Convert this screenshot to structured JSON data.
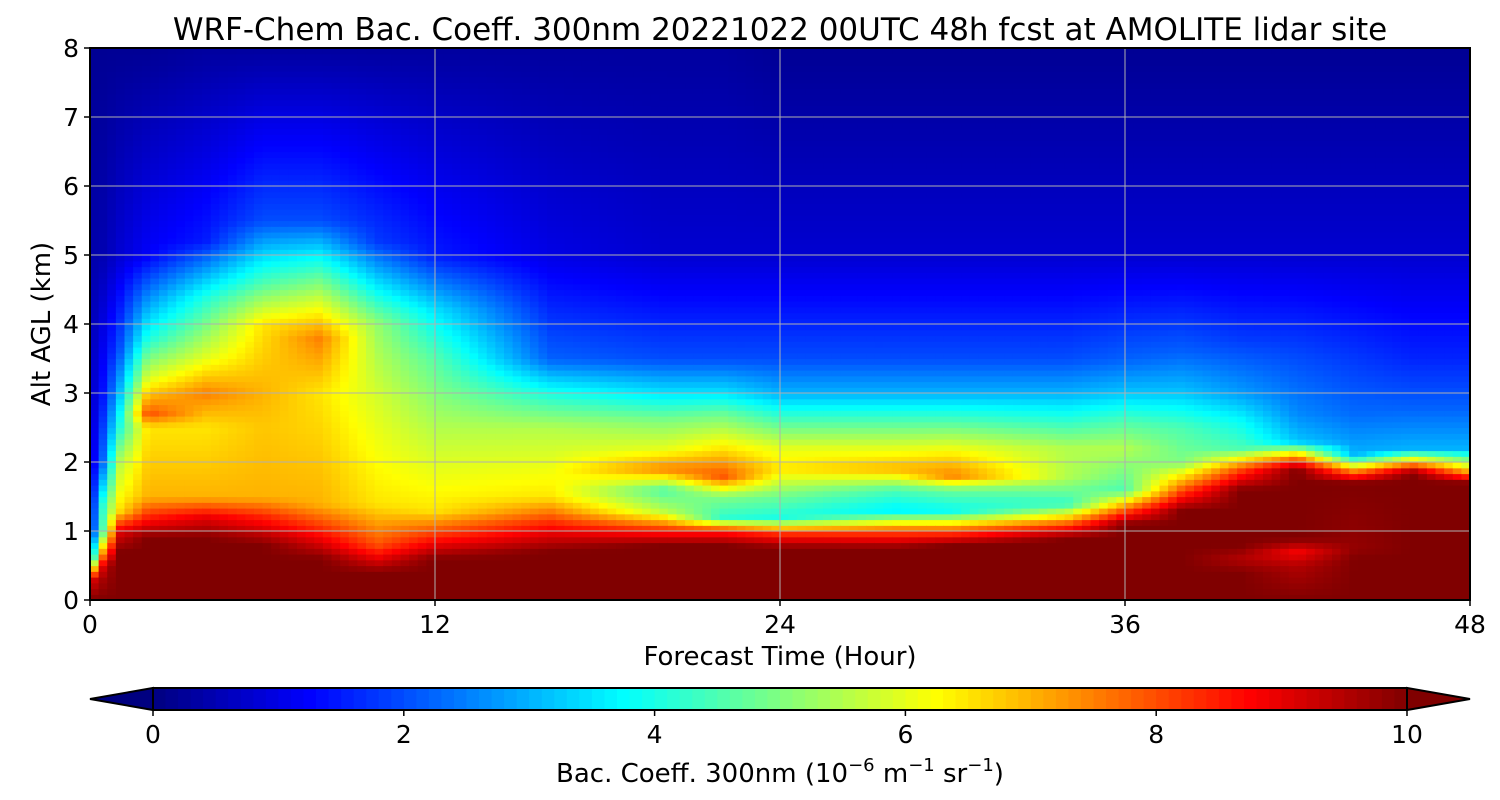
{
  "chart_data": {
    "type": "heatmap",
    "title": "WRF-Chem Bac. Coeff. 300nm  20221022 00UTC 48h fcst at AMOLITE lidar site",
    "xlabel": "Forecast Time (Hour)",
    "ylabel": "Alt AGL (km)",
    "xlim": [
      0,
      48
    ],
    "ylim": [
      0,
      8
    ],
    "x_ticks": [
      0,
      12,
      24,
      36,
      48
    ],
    "y_ticks": [
      0,
      1,
      2,
      3,
      4,
      5,
      6,
      7,
      8
    ],
    "grid": true,
    "colormap": "jet",
    "colorbar": {
      "orientation": "horizontal",
      "location": "bottom",
      "range": [
        0,
        10
      ],
      "ticks": [
        0,
        2,
        4,
        6,
        8,
        10
      ],
      "extend": "both",
      "label_main": "Bac. Coeff. 300nm  (10",
      "label_exp1": "−6",
      "label_mid": " m",
      "label_exp2": "−1",
      "label_mid2": " sr",
      "label_exp3": "−1",
      "label_end": ")"
    },
    "x_hours": [
      0,
      0.5,
      1,
      2,
      4,
      6,
      8,
      10,
      12,
      16,
      20,
      22,
      24,
      28,
      30,
      34,
      36,
      38,
      40,
      42,
      44,
      46,
      48
    ],
    "profiles": [
      {
        "hour": 0,
        "points": [
          [
            0,
            10
          ],
          [
            0.3,
            9
          ],
          [
            0.6,
            3
          ],
          [
            1,
            1.2
          ],
          [
            2,
            0.7
          ],
          [
            4,
            0.5
          ],
          [
            8,
            0.2
          ]
        ]
      },
      {
        "hour": 0.5,
        "points": [
          [
            0,
            10
          ],
          [
            0.5,
            9.5
          ],
          [
            1,
            5
          ],
          [
            1.4,
            4.5
          ],
          [
            2,
            2.5
          ],
          [
            3,
            1.5
          ],
          [
            5,
            0.5
          ],
          [
            8,
            0.2
          ]
        ]
      },
      {
        "hour": 1,
        "points": [
          [
            0,
            10
          ],
          [
            0.7,
            10
          ],
          [
            1,
            9
          ],
          [
            1.3,
            6.5
          ],
          [
            2,
            5.5
          ],
          [
            2.5,
            4
          ],
          [
            3,
            3
          ],
          [
            3.6,
            2
          ],
          [
            5,
            0.8
          ],
          [
            8,
            0.2
          ]
        ]
      },
      {
        "hour": 2,
        "points": [
          [
            0,
            10
          ],
          [
            0.9,
            10
          ],
          [
            1.1,
            9
          ],
          [
            1.5,
            7
          ],
          [
            2.5,
            6.5
          ],
          [
            2.7,
            8
          ],
          [
            3.2,
            6
          ],
          [
            3.8,
            4
          ],
          [
            5,
            1.2
          ],
          [
            8,
            0.2
          ]
        ]
      },
      {
        "hour": 4,
        "points": [
          [
            0,
            10
          ],
          [
            0.9,
            10
          ],
          [
            1.2,
            9
          ],
          [
            1.5,
            7
          ],
          [
            2.5,
            6.5
          ],
          [
            3,
            7.5
          ],
          [
            3.5,
            6
          ],
          [
            4.4,
            4
          ],
          [
            5.2,
            1.5
          ],
          [
            8,
            0.3
          ]
        ]
      },
      {
        "hour": 6,
        "points": [
          [
            0,
            10
          ],
          [
            0.8,
            10
          ],
          [
            1.2,
            8.5
          ],
          [
            1.5,
            7
          ],
          [
            2.5,
            6.8
          ],
          [
            3,
            7
          ],
          [
            4,
            6.5
          ],
          [
            4.6,
            4.5
          ],
          [
            5.5,
            2
          ],
          [
            8,
            0.3
          ]
        ]
      },
      {
        "hour": 8,
        "points": [
          [
            0,
            10
          ],
          [
            0.6,
            10
          ],
          [
            1,
            8.5
          ],
          [
            1.4,
            7
          ],
          [
            3,
            6.5
          ],
          [
            3.8,
            7.5
          ],
          [
            4.6,
            5
          ],
          [
            5.5,
            2
          ],
          [
            8,
            0.3
          ]
        ]
      },
      {
        "hour": 10,
        "points": [
          [
            0,
            10
          ],
          [
            0.4,
            10
          ],
          [
            0.8,
            8
          ],
          [
            1.4,
            6.5
          ],
          [
            3,
            5.8
          ],
          [
            4,
            5.2
          ],
          [
            4.4,
            4
          ],
          [
            5.2,
            1.8
          ],
          [
            8,
            0.3
          ]
        ]
      },
      {
        "hour": 12,
        "points": [
          [
            0,
            10
          ],
          [
            0.6,
            10
          ],
          [
            0.9,
            8.5
          ],
          [
            1.3,
            6.5
          ],
          [
            2.5,
            5.5
          ],
          [
            3.5,
            4.6
          ],
          [
            4.2,
            3.5
          ],
          [
            5,
            1.5
          ],
          [
            8,
            0.3
          ]
        ]
      },
      {
        "hour": 16,
        "points": [
          [
            0,
            10
          ],
          [
            0.7,
            10
          ],
          [
            1.1,
            8.5
          ],
          [
            1.5,
            6.5
          ],
          [
            2.5,
            5.5
          ],
          [
            3,
            4
          ],
          [
            3.5,
            2.2
          ],
          [
            5,
            1
          ],
          [
            8,
            0.3
          ]
        ]
      },
      {
        "hour": 20,
        "points": [
          [
            0,
            10
          ],
          [
            0.8,
            10
          ],
          [
            1,
            8.5
          ],
          [
            1.3,
            5.5
          ],
          [
            1.6,
            4.5
          ],
          [
            1.9,
            7.5
          ],
          [
            2.2,
            6
          ],
          [
            2.6,
            5
          ],
          [
            3,
            3.5
          ],
          [
            3.5,
            2
          ],
          [
            5,
            0.8
          ],
          [
            8,
            0.3
          ]
        ]
      },
      {
        "hour": 22,
        "points": [
          [
            0,
            10
          ],
          [
            0.8,
            10
          ],
          [
            1,
            8.5
          ],
          [
            1.2,
            4.2
          ],
          [
            1.5,
            5
          ],
          [
            1.8,
            8
          ],
          [
            2.2,
            6.5
          ],
          [
            2.7,
            4.8
          ],
          [
            3,
            3.5
          ],
          [
            3.5,
            2
          ],
          [
            5,
            0.8
          ],
          [
            8,
            0.3
          ]
        ]
      },
      {
        "hour": 24,
        "points": [
          [
            0,
            10
          ],
          [
            0.75,
            10
          ],
          [
            0.95,
            8.5
          ],
          [
            1.2,
            4
          ],
          [
            1.5,
            4.8
          ],
          [
            1.9,
            6.5
          ],
          [
            2.2,
            6
          ],
          [
            2.6,
            4.5
          ],
          [
            3,
            3
          ],
          [
            3.5,
            2
          ],
          [
            5,
            0.8
          ],
          [
            8,
            0.2
          ]
        ]
      },
      {
        "hour": 28,
        "points": [
          [
            0,
            10
          ],
          [
            0.75,
            10
          ],
          [
            1,
            8
          ],
          [
            1.3,
            3.6
          ],
          [
            1.6,
            4.5
          ],
          [
            1.9,
            7
          ],
          [
            2.2,
            6
          ],
          [
            2.6,
            4.5
          ],
          [
            3,
            3
          ],
          [
            3.5,
            2
          ],
          [
            5,
            0.8
          ],
          [
            8,
            0.2
          ]
        ]
      },
      {
        "hour": 30,
        "points": [
          [
            0,
            10
          ],
          [
            0.8,
            10
          ],
          [
            1,
            8
          ],
          [
            1.3,
            3.8
          ],
          [
            1.6,
            4.8
          ],
          [
            1.8,
            7.5
          ],
          [
            2.1,
            6.5
          ],
          [
            2.6,
            4.5
          ],
          [
            3,
            3
          ],
          [
            3.5,
            2
          ],
          [
            5,
            0.8
          ],
          [
            8,
            0.2
          ]
        ]
      },
      {
        "hour": 34,
        "points": [
          [
            0,
            10
          ],
          [
            0.9,
            10
          ],
          [
            1.1,
            8
          ],
          [
            1.4,
            4.2
          ],
          [
            1.8,
            5.5
          ],
          [
            2.2,
            5.5
          ],
          [
            2.6,
            4.2
          ],
          [
            3,
            3
          ],
          [
            3.5,
            2
          ],
          [
            5,
            0.8
          ],
          [
            8,
            0.2
          ]
        ]
      },
      {
        "hour": 36,
        "points": [
          [
            0,
            10
          ],
          [
            1.1,
            10
          ],
          [
            1.3,
            8
          ],
          [
            1.6,
            4.5
          ],
          [
            2.2,
            5.5
          ],
          [
            2.6,
            4.5
          ],
          [
            3,
            3.2
          ],
          [
            3.5,
            2.2
          ],
          [
            5,
            0.8
          ],
          [
            8,
            0.2
          ]
        ]
      },
      {
        "hour": 38,
        "points": [
          [
            0,
            10
          ],
          [
            1.3,
            10
          ],
          [
            1.6,
            8
          ],
          [
            2,
            5
          ],
          [
            2.5,
            4.5
          ],
          [
            3,
            3.2
          ],
          [
            3.6,
            2.2
          ],
          [
            5,
            0.8
          ],
          [
            8,
            0.2
          ]
        ]
      },
      {
        "hour": 40,
        "points": [
          [
            0,
            10
          ],
          [
            0.4,
            10
          ],
          [
            0.6,
            9.5
          ],
          [
            0.8,
            10
          ],
          [
            1.6,
            10
          ],
          [
            1.9,
            8
          ],
          [
            2.2,
            4.5
          ],
          [
            2.6,
            3.8
          ],
          [
            3,
            2.8
          ],
          [
            3.8,
            1.8
          ],
          [
            5,
            0.8
          ],
          [
            8,
            0.2
          ]
        ]
      },
      {
        "hour": 42,
        "points": [
          [
            0,
            10
          ],
          [
            0.5,
            9.5
          ],
          [
            0.7,
            8.8
          ],
          [
            0.9,
            10
          ],
          [
            1.9,
            10
          ],
          [
            2.1,
            7
          ],
          [
            2.3,
            3.2
          ],
          [
            2.7,
            2.6
          ],
          [
            3.5,
            2
          ],
          [
            5,
            0.8
          ],
          [
            8,
            0.2
          ]
        ]
      },
      {
        "hour": 44,
        "points": [
          [
            0,
            10
          ],
          [
            0.6,
            10
          ],
          [
            0.75,
            9.8
          ],
          [
            1.7,
            10
          ],
          [
            1.9,
            7
          ],
          [
            2.1,
            3
          ],
          [
            2.7,
            2.3
          ],
          [
            3.5,
            1.8
          ],
          [
            5,
            0.8
          ],
          [
            8,
            0.2
          ]
        ]
      },
      {
        "hour": 46,
        "points": [
          [
            0,
            10
          ],
          [
            1.85,
            10
          ],
          [
            2,
            7
          ],
          [
            2.2,
            3
          ],
          [
            2.8,
            2.2
          ],
          [
            3.5,
            1.6
          ],
          [
            5,
            0.8
          ],
          [
            8,
            0.2
          ]
        ]
      },
      {
        "hour": 48,
        "points": [
          [
            0,
            10
          ],
          [
            1.7,
            10
          ],
          [
            1.9,
            6.5
          ],
          [
            2.2,
            3
          ],
          [
            2.8,
            2.2
          ],
          [
            3.5,
            1.6
          ],
          [
            5,
            0.8
          ],
          [
            8,
            0.2
          ]
        ]
      }
    ]
  }
}
